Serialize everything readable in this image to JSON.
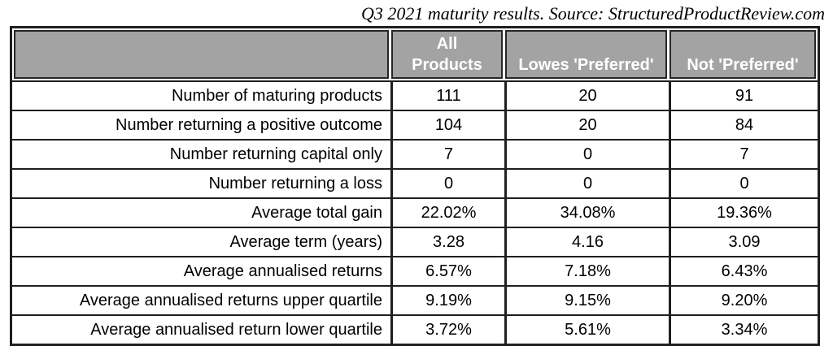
{
  "caption": "Q3 2021 maturity results. Source: StructuredProductReview.com",
  "header": {
    "all_products": "All\nProducts",
    "lowes_preferred": "Lowes 'Preferred'",
    "not_preferred": "Not 'Preferred'"
  },
  "chart_data": {
    "type": "table",
    "title": "Q3 2021 maturity results. Source: StructuredProductReview.com",
    "columns": [
      "",
      "All Products",
      "Lowes 'Preferred'",
      "Not 'Preferred'"
    ],
    "rows": [
      [
        "Number of maturing products",
        "111",
        "20",
        "91"
      ],
      [
        "Number returning a positive outcome",
        "104",
        "20",
        "84"
      ],
      [
        "Number returning capital only",
        "7",
        "0",
        "7"
      ],
      [
        "Number returning a loss",
        "0",
        "0",
        "0"
      ],
      [
        "Average total gain",
        "22.02%",
        "34.08%",
        "19.36%"
      ],
      [
        "Average term (years)",
        "3.28",
        "4.16",
        "3.09"
      ],
      [
        "Average annualised returns",
        "6.57%",
        "7.18%",
        "6.43%"
      ],
      [
        "Average annualised returns upper quartile",
        "9.19%",
        "9.15%",
        "9.20%"
      ],
      [
        "Average annualised return lower quartile",
        "3.72%",
        "5.61%",
        "3.34%"
      ]
    ]
  },
  "colors": {
    "header_bg": "#a3a3a3",
    "header_text": "#ffffff",
    "border": "#1f1f1f",
    "body_text": "#000000",
    "background": "#ffffff"
  }
}
